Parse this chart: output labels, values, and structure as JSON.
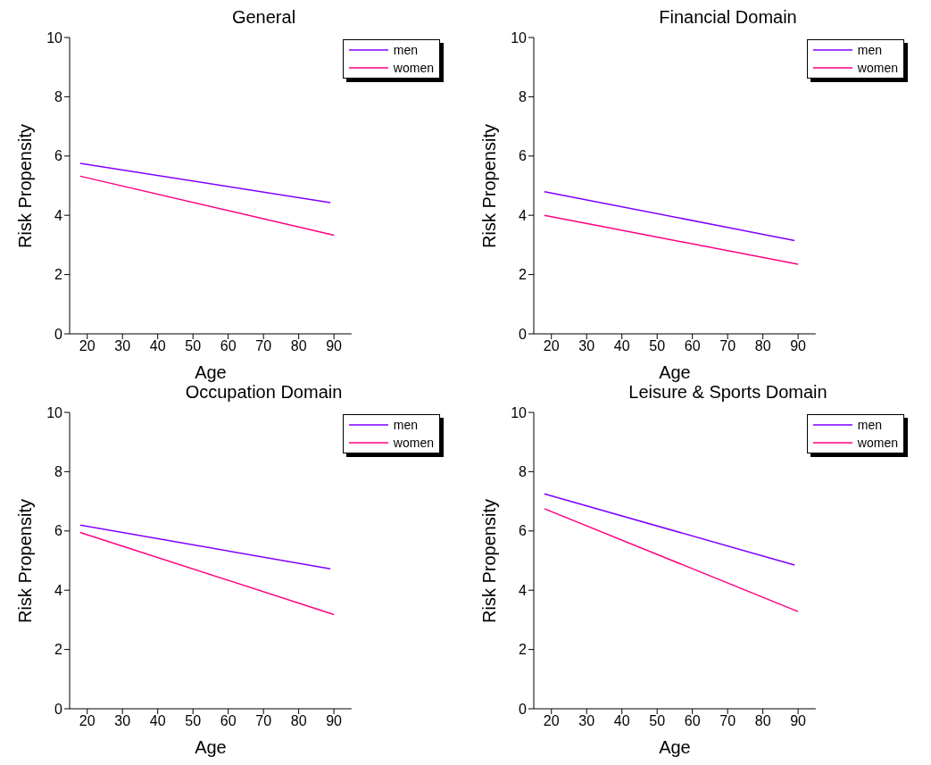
{
  "chart_data": [
    {
      "type": "line",
      "title": "General",
      "xlabel": "Age",
      "ylabel": "Risk Propensity",
      "xlim": [
        15,
        95
      ],
      "xticks": [
        20,
        30,
        40,
        50,
        60,
        70,
        80,
        90
      ],
      "ylim": [
        0,
        10
      ],
      "yticks": [
        0,
        2,
        4,
        6,
        8,
        10
      ],
      "legend": "top right",
      "marker": "none",
      "line_style": "solid",
      "series": [
        {
          "name": "men",
          "color": "#8000ff",
          "x": [
            18,
            89
          ],
          "values": [
            5.75,
            4.43
          ]
        },
        {
          "name": "women",
          "color": "#ff0080",
          "x": [
            18,
            90
          ],
          "values": [
            5.32,
            3.33
          ]
        }
      ]
    },
    {
      "type": "line",
      "title": "Financial Domain",
      "xlabel": "Age",
      "ylabel": "Risk Propensity",
      "xlim": [
        15,
        95
      ],
      "xticks": [
        20,
        30,
        40,
        50,
        60,
        70,
        80,
        90
      ],
      "ylim": [
        0,
        10
      ],
      "yticks": [
        0,
        2,
        4,
        6,
        8,
        10
      ],
      "legend": "top right",
      "marker": "none",
      "line_style": "solid",
      "series": [
        {
          "name": "men",
          "color": "#8000ff",
          "x": [
            18,
            89
          ],
          "values": [
            4.8,
            3.15
          ]
        },
        {
          "name": "women",
          "color": "#ff0080",
          "x": [
            18,
            90
          ],
          "values": [
            4.0,
            2.35
          ]
        }
      ]
    },
    {
      "type": "line",
      "title": "Occupation Domain",
      "xlabel": "Age",
      "ylabel": "Risk Propensity",
      "xlim": [
        15,
        95
      ],
      "xticks": [
        20,
        30,
        40,
        50,
        60,
        70,
        80,
        90
      ],
      "ylim": [
        0,
        10
      ],
      "yticks": [
        0,
        2,
        4,
        6,
        8,
        10
      ],
      "legend": "top right",
      "marker": "none",
      "line_style": "solid",
      "series": [
        {
          "name": "men",
          "color": "#8000ff",
          "x": [
            18,
            89
          ],
          "values": [
            6.2,
            4.72
          ]
        },
        {
          "name": "women",
          "color": "#ff0080",
          "x": [
            18,
            90
          ],
          "values": [
            5.95,
            3.18
          ]
        }
      ]
    },
    {
      "type": "line",
      "title": "Leisure & Sports Domain",
      "xlabel": "Age",
      "ylabel": "Risk Propensity",
      "xlim": [
        15,
        95
      ],
      "xticks": [
        20,
        30,
        40,
        50,
        60,
        70,
        80,
        90
      ],
      "ylim": [
        0,
        10
      ],
      "yticks": [
        0,
        2,
        4,
        6,
        8,
        10
      ],
      "legend": "top right",
      "marker": "none",
      "line_style": "solid",
      "series": [
        {
          "name": "men",
          "color": "#8000ff",
          "x": [
            18,
            89
          ],
          "values": [
            7.25,
            4.85
          ]
        },
        {
          "name": "women",
          "color": "#ff0080",
          "x": [
            18,
            90
          ],
          "values": [
            6.75,
            3.28
          ]
        }
      ]
    }
  ]
}
